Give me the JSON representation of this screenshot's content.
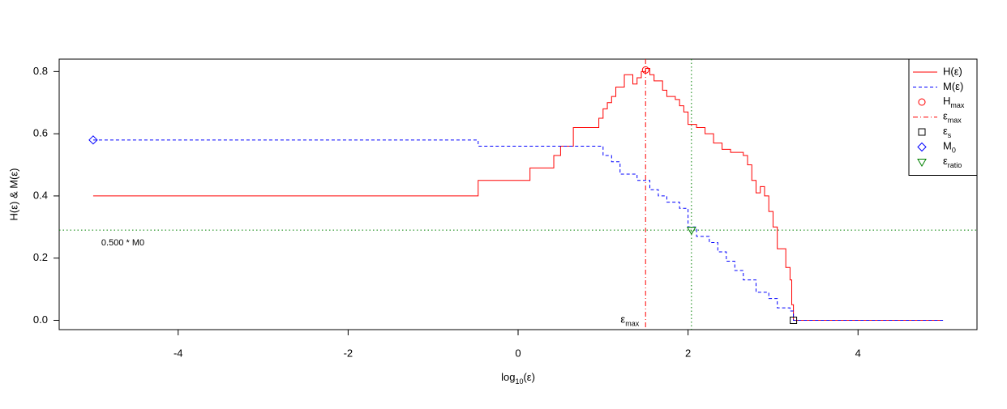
{
  "chart_data": {
    "type": "line",
    "step": "post",
    "xlabel": {
      "text": "log",
      "subscript": "10",
      "suffix": "(ε)"
    },
    "ylabel": "H(ε)  &  M(ε)",
    "xlim": [
      -5.4,
      5.4
    ],
    "ylim": [
      -0.03,
      0.84
    ],
    "xticks": [
      -4,
      -2,
      0,
      2,
      4
    ],
    "yticks": [
      {
        "value": 0,
        "label": "0.0"
      },
      0.2,
      0.4,
      0.6,
      0.8
    ],
    "legend": "topright",
    "series": [
      {
        "name": "H(ε)",
        "color": "#ff0000",
        "dash": "solid",
        "x": [
          -5,
          -0.47,
          0.14,
          0.42,
          0.5,
          0.65,
          0.95,
          1.0,
          1.05,
          1.1,
          1.15,
          1.25,
          1.35,
          1.4,
          1.45,
          1.5,
          1.55,
          1.6,
          1.7,
          1.75,
          1.85,
          1.9,
          1.95,
          2.0,
          2.1,
          2.2,
          2.3,
          2.4,
          2.5,
          2.65,
          2.7,
          2.75,
          2.8,
          2.85,
          2.9,
          2.95,
          3.0,
          3.05,
          3.15,
          3.2,
          3.22,
          3.24,
          5
        ],
        "values": [
          0.4,
          0.45,
          0.49,
          0.53,
          0.56,
          0.62,
          0.65,
          0.68,
          0.7,
          0.72,
          0.75,
          0.79,
          0.76,
          0.78,
          0.8,
          0.81,
          0.79,
          0.77,
          0.74,
          0.72,
          0.71,
          0.69,
          0.67,
          0.63,
          0.62,
          0.6,
          0.57,
          0.55,
          0.54,
          0.53,
          0.5,
          0.45,
          0.41,
          0.43,
          0.4,
          0.35,
          0.3,
          0.23,
          0.17,
          0.13,
          0.05,
          0,
          0
        ]
      },
      {
        "name": "M(ε)",
        "color": "#0000ff",
        "dash": "dashed",
        "x": [
          -5,
          -0.47,
          1.0,
          1.1,
          1.2,
          1.4,
          1.55,
          1.65,
          1.75,
          1.9,
          2.0,
          2.1,
          2.25,
          2.35,
          2.45,
          2.55,
          2.65,
          2.8,
          2.95,
          3.05,
          3.2,
          3.24,
          5
        ],
        "values": [
          0.58,
          0.56,
          0.53,
          0.51,
          0.47,
          0.45,
          0.42,
          0.4,
          0.38,
          0.36,
          0.3,
          0.27,
          0.25,
          0.22,
          0.19,
          0.16,
          0.13,
          0.09,
          0.07,
          0.04,
          0.03,
          0,
          0
        ]
      }
    ],
    "markers": [
      {
        "kind": "point",
        "name": {
          "text": "H",
          "subscript": "max"
        },
        "shape": "circle",
        "color": "#ff0000",
        "x": 1.5,
        "y": 0.805
      },
      {
        "kind": "vline",
        "name": {
          "text": "ε",
          "subscript": "max"
        },
        "style": "dotdash",
        "color": "#ff0000",
        "x": 1.5
      },
      {
        "kind": "point",
        "name": {
          "text": "ε",
          "subscript": "s"
        },
        "shape": "square",
        "color": "#000000",
        "x": 3.24,
        "y": 0
      },
      {
        "kind": "point",
        "name": {
          "text": "M",
          "subscript": "0"
        },
        "shape": "diamond",
        "color": "#0000ff",
        "x": -5,
        "y": 0.58
      },
      {
        "kind": "point",
        "name": {
          "text": "ε",
          "subscript": "ratio"
        },
        "shape": "triangle-down",
        "color": "#008000",
        "x": 2.04,
        "y": 0.29
      }
    ],
    "reference_lines": [
      {
        "orientation": "vertical",
        "value": 2.04,
        "color": "#008000",
        "style": "dotted"
      },
      {
        "orientation": "horizontal",
        "value": 0.29,
        "color": "#008000",
        "style": "dotted",
        "label": "0.500 * M0"
      }
    ]
  }
}
